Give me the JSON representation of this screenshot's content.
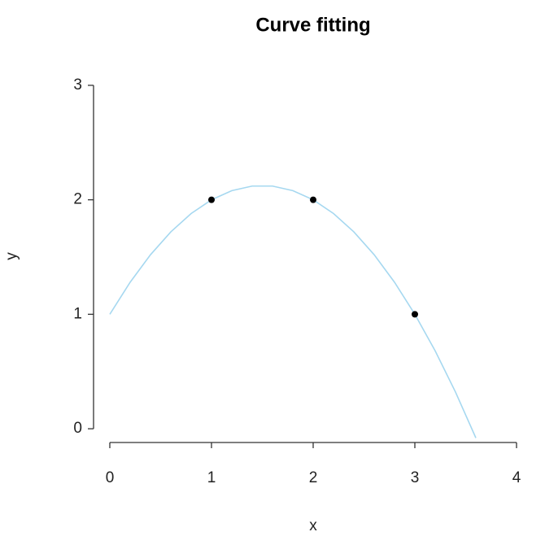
{
  "chart_data": {
    "type": "scatter",
    "title": "Curve fitting",
    "xlabel": "x",
    "ylabel": "y",
    "points": {
      "x": [
        1,
        2,
        3
      ],
      "y": [
        2,
        2,
        1
      ],
      "color": "#000000"
    },
    "curve": {
      "x": [
        0,
        0.2,
        0.4,
        0.6,
        0.8,
        1.0,
        1.2,
        1.4,
        1.6,
        1.8,
        2.0,
        2.2,
        2.4,
        2.6,
        2.8,
        3.0,
        3.2,
        3.4,
        3.6
      ],
      "y": [
        1,
        1.28,
        1.52,
        1.72,
        1.88,
        2,
        2.08,
        2.12,
        2.12,
        2.08,
        2,
        1.88,
        1.72,
        1.52,
        1.28,
        1,
        0.68,
        0.32,
        -0.08
      ],
      "color": "#a6d8f0"
    },
    "xlim": [
      -0.16,
      4.16
    ],
    "ylim": [
      -0.12,
      3.12
    ],
    "xticks": [
      0,
      1,
      2,
      3,
      4
    ],
    "yticks": [
      0,
      1,
      2,
      3
    ],
    "grid": false
  }
}
